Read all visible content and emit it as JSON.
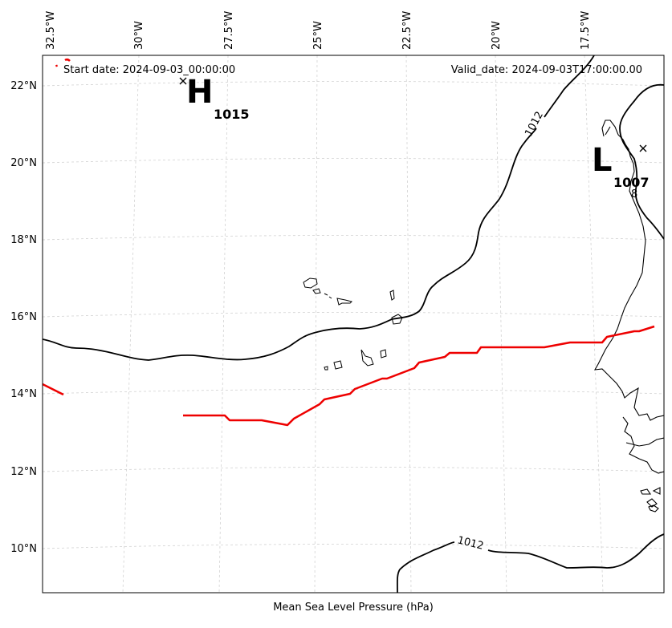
{
  "header": {
    "start_date": "Start date: 2024-09-03_00:00:00",
    "valid_date": "Valid_date: 2024-09-03T17:00:00.00"
  },
  "xlabel": "Mean Sea Level Pressure (hPa)",
  "lon_ticks": [
    "32.5°W",
    "30°W",
    "27.5°W",
    "25°W",
    "22.5°W",
    "20°W",
    "17.5°W"
  ],
  "lat_ticks": [
    "22°N",
    "20°N",
    "18°N",
    "16°N",
    "14°N",
    "12°N",
    "10°N"
  ],
  "high": {
    "letter": "H",
    "value": "1015"
  },
  "low": {
    "letter": "L",
    "value": "1007"
  },
  "contour_labels": [
    "1012",
    "1012"
  ],
  "colors": {
    "isobar": "#000000",
    "track": "#ee0000",
    "grid": "#cccccc"
  },
  "chart_data": {
    "type": "map",
    "xlabel": "Mean Sea Level Pressure (hPa)",
    "lon_range": [
      "33°W",
      "16°W"
    ],
    "lat_range": [
      "9°N",
      "22.8°N"
    ],
    "grid": true,
    "centers": [
      {
        "type": "H",
        "pressure": 1015
      },
      {
        "type": "L",
        "pressure": 1007
      }
    ],
    "isobars": [
      1012,
      1012
    ]
  }
}
